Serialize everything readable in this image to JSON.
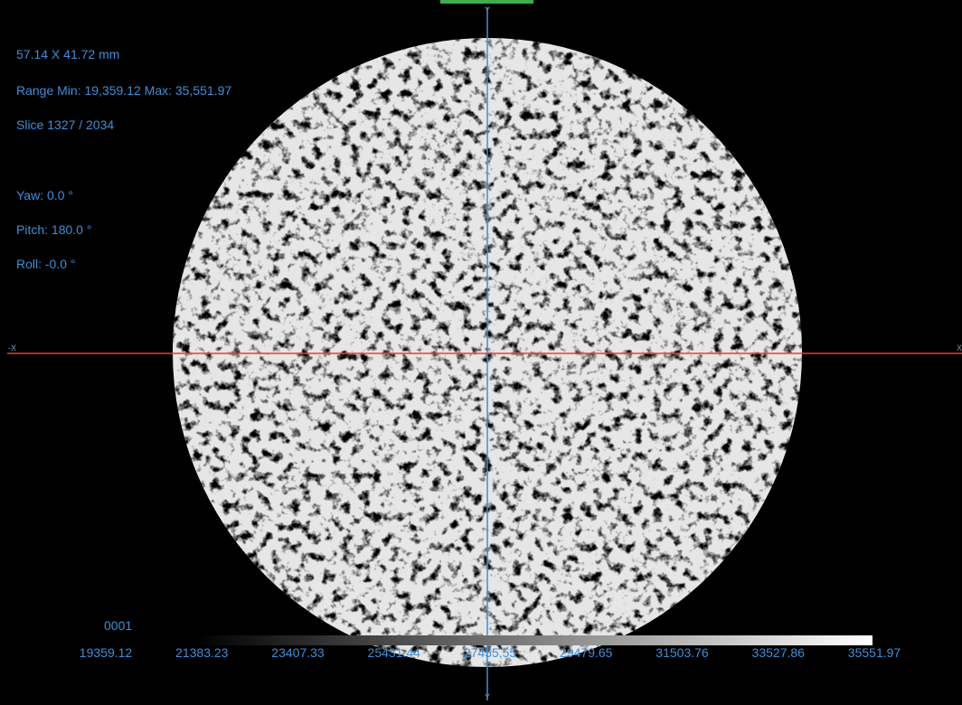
{
  "info": {
    "dimensions": "57.14 X 41.72 mm",
    "range": "Range Min: 19,359.12 Max: 35,551.97",
    "slice": "Slice 1327 / 2034",
    "yaw": "Yaw: 0.0 °",
    "pitch": "Pitch: 180.0 °",
    "roll": "Roll: -0.0 °"
  },
  "axes": {
    "top": "Y",
    "bottom": "Y",
    "left": "-X",
    "right": "X"
  },
  "colorbar": {
    "index": "0001",
    "labels": [
      "19359.12",
      "21383.23",
      "23407.33",
      "25431.44",
      "27455.55",
      "29479.65",
      "31503.76",
      "33527.86",
      "35551.97"
    ]
  }
}
